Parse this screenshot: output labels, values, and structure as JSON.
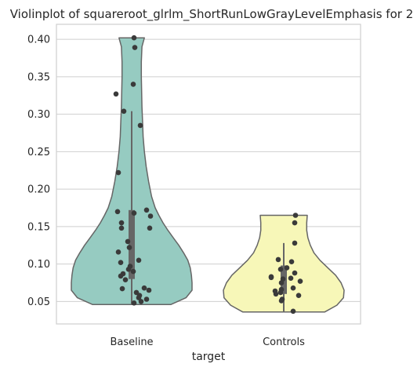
{
  "chart_data": {
    "type": "violin",
    "title": "Violinplot of squareroot_glrlm_ShortRunLowGrayLevelEmphasis for 2",
    "xlabel": "target",
    "ylabel": "",
    "categories": [
      "Baseline",
      "Controls"
    ],
    "ylim": [
      0.02,
      0.42
    ],
    "yticks": [
      0.05,
      0.1,
      0.15,
      0.2,
      0.25,
      0.3,
      0.35,
      0.4
    ],
    "ytick_labels": [
      "0.05",
      "0.10",
      "0.15",
      "0.20",
      "0.25",
      "0.30",
      "0.35",
      "0.40"
    ],
    "grid": true,
    "colors": {
      "Baseline": "#96cbc1",
      "Controls": "#f7f7b8",
      "outline": "#666666",
      "points": "#3a3a3a",
      "grid": "#cfcfcf"
    },
    "series": [
      {
        "category": "Baseline",
        "range": [
          0.046,
          0.402
        ],
        "quartiles": [
          0.08,
          0.13,
          0.172
        ],
        "whisker": [
          0.046,
          0.304
        ],
        "density": [
          [
            0.046,
            0.65
          ],
          [
            0.055,
            0.9
          ],
          [
            0.065,
            1.0
          ],
          [
            0.075,
            1.0
          ],
          [
            0.085,
            0.99
          ],
          [
            0.095,
            0.97
          ],
          [
            0.105,
            0.93
          ],
          [
            0.115,
            0.86
          ],
          [
            0.125,
            0.78
          ],
          [
            0.135,
            0.69
          ],
          [
            0.145,
            0.6
          ],
          [
            0.155,
            0.52
          ],
          [
            0.165,
            0.45
          ],
          [
            0.175,
            0.39
          ],
          [
            0.19,
            0.33
          ],
          [
            0.21,
            0.28
          ],
          [
            0.23,
            0.24
          ],
          [
            0.25,
            0.21
          ],
          [
            0.27,
            0.19
          ],
          [
            0.29,
            0.18
          ],
          [
            0.31,
            0.17
          ],
          [
            0.33,
            0.165
          ],
          [
            0.35,
            0.16
          ],
          [
            0.37,
            0.16
          ],
          [
            0.39,
            0.17
          ],
          [
            0.402,
            0.21
          ]
        ],
        "points": [
          {
            "v": 0.402,
            "j": 0.03
          },
          {
            "v": 0.389,
            "j": 0.04
          },
          {
            "v": 0.34,
            "j": 0.02
          },
          {
            "v": 0.327,
            "j": -0.2
          },
          {
            "v": 0.304,
            "j": -0.1
          },
          {
            "v": 0.285,
            "j": 0.11
          },
          {
            "v": 0.222,
            "j": -0.17
          },
          {
            "v": 0.172,
            "j": 0.19
          },
          {
            "v": 0.17,
            "j": -0.18
          },
          {
            "v": 0.168,
            "j": 0.03
          },
          {
            "v": 0.164,
            "j": 0.24
          },
          {
            "v": 0.155,
            "j": -0.13
          },
          {
            "v": 0.148,
            "j": 0.23
          },
          {
            "v": 0.148,
            "j": -0.13
          },
          {
            "v": 0.13,
            "j": -0.05
          },
          {
            "v": 0.122,
            "j": -0.03
          },
          {
            "v": 0.116,
            "j": -0.17
          },
          {
            "v": 0.105,
            "j": 0.09
          },
          {
            "v": 0.102,
            "j": -0.14
          },
          {
            "v": 0.097,
            "j": -0.02
          },
          {
            "v": 0.093,
            "j": -0.04
          },
          {
            "v": 0.09,
            "j": 0.02
          },
          {
            "v": 0.087,
            "j": -0.11
          },
          {
            "v": 0.084,
            "j": -0.14
          },
          {
            "v": 0.079,
            "j": -0.08
          },
          {
            "v": 0.068,
            "j": 0.16
          },
          {
            "v": 0.067,
            "j": -0.12
          },
          {
            "v": 0.065,
            "j": 0.22
          },
          {
            "v": 0.062,
            "j": 0.06
          },
          {
            "v": 0.058,
            "j": 0.1
          },
          {
            "v": 0.055,
            "j": 0.09
          },
          {
            "v": 0.053,
            "j": 0.19
          },
          {
            "v": 0.05,
            "j": 0.12
          },
          {
            "v": 0.048,
            "j": 0.03
          }
        ]
      },
      {
        "category": "Controls",
        "range": [
          0.036,
          0.165
        ],
        "quartiles": [
          0.06,
          0.074,
          0.098
        ],
        "whisker": [
          0.036,
          0.128
        ],
        "density": [
          [
            0.036,
            0.68
          ],
          [
            0.045,
            0.88
          ],
          [
            0.055,
            0.99
          ],
          [
            0.065,
            1.0
          ],
          [
            0.075,
            0.95
          ],
          [
            0.085,
            0.86
          ],
          [
            0.095,
            0.73
          ],
          [
            0.105,
            0.6
          ],
          [
            0.115,
            0.5
          ],
          [
            0.125,
            0.44
          ],
          [
            0.135,
            0.4
          ],
          [
            0.145,
            0.38
          ],
          [
            0.155,
            0.38
          ],
          [
            0.165,
            0.39
          ]
        ],
        "points": [
          {
            "v": 0.165,
            "j": 0.15
          },
          {
            "v": 0.155,
            "j": 0.14
          },
          {
            "v": 0.128,
            "j": 0.14
          },
          {
            "v": 0.106,
            "j": -0.07
          },
          {
            "v": 0.103,
            "j": 0.1
          },
          {
            "v": 0.095,
            "j": 0.04
          },
          {
            "v": 0.093,
            "j": -0.04
          },
          {
            "v": 0.088,
            "j": 0.14
          },
          {
            "v": 0.083,
            "j": -0.16
          },
          {
            "v": 0.082,
            "j": -0.16
          },
          {
            "v": 0.081,
            "j": 0.09
          },
          {
            "v": 0.08,
            "j": -0.01
          },
          {
            "v": 0.077,
            "j": 0.21
          },
          {
            "v": 0.075,
            "j": -0.03
          },
          {
            "v": 0.068,
            "j": 0.12
          },
          {
            "v": 0.066,
            "j": -0.03
          },
          {
            "v": 0.064,
            "j": -0.11
          },
          {
            "v": 0.062,
            "j": -0.04
          },
          {
            "v": 0.06,
            "j": -0.1
          },
          {
            "v": 0.058,
            "j": 0.19
          },
          {
            "v": 0.053,
            "j": -0.02
          },
          {
            "v": 0.051,
            "j": -0.03
          },
          {
            "v": 0.037,
            "j": 0.12
          }
        ]
      }
    ]
  }
}
